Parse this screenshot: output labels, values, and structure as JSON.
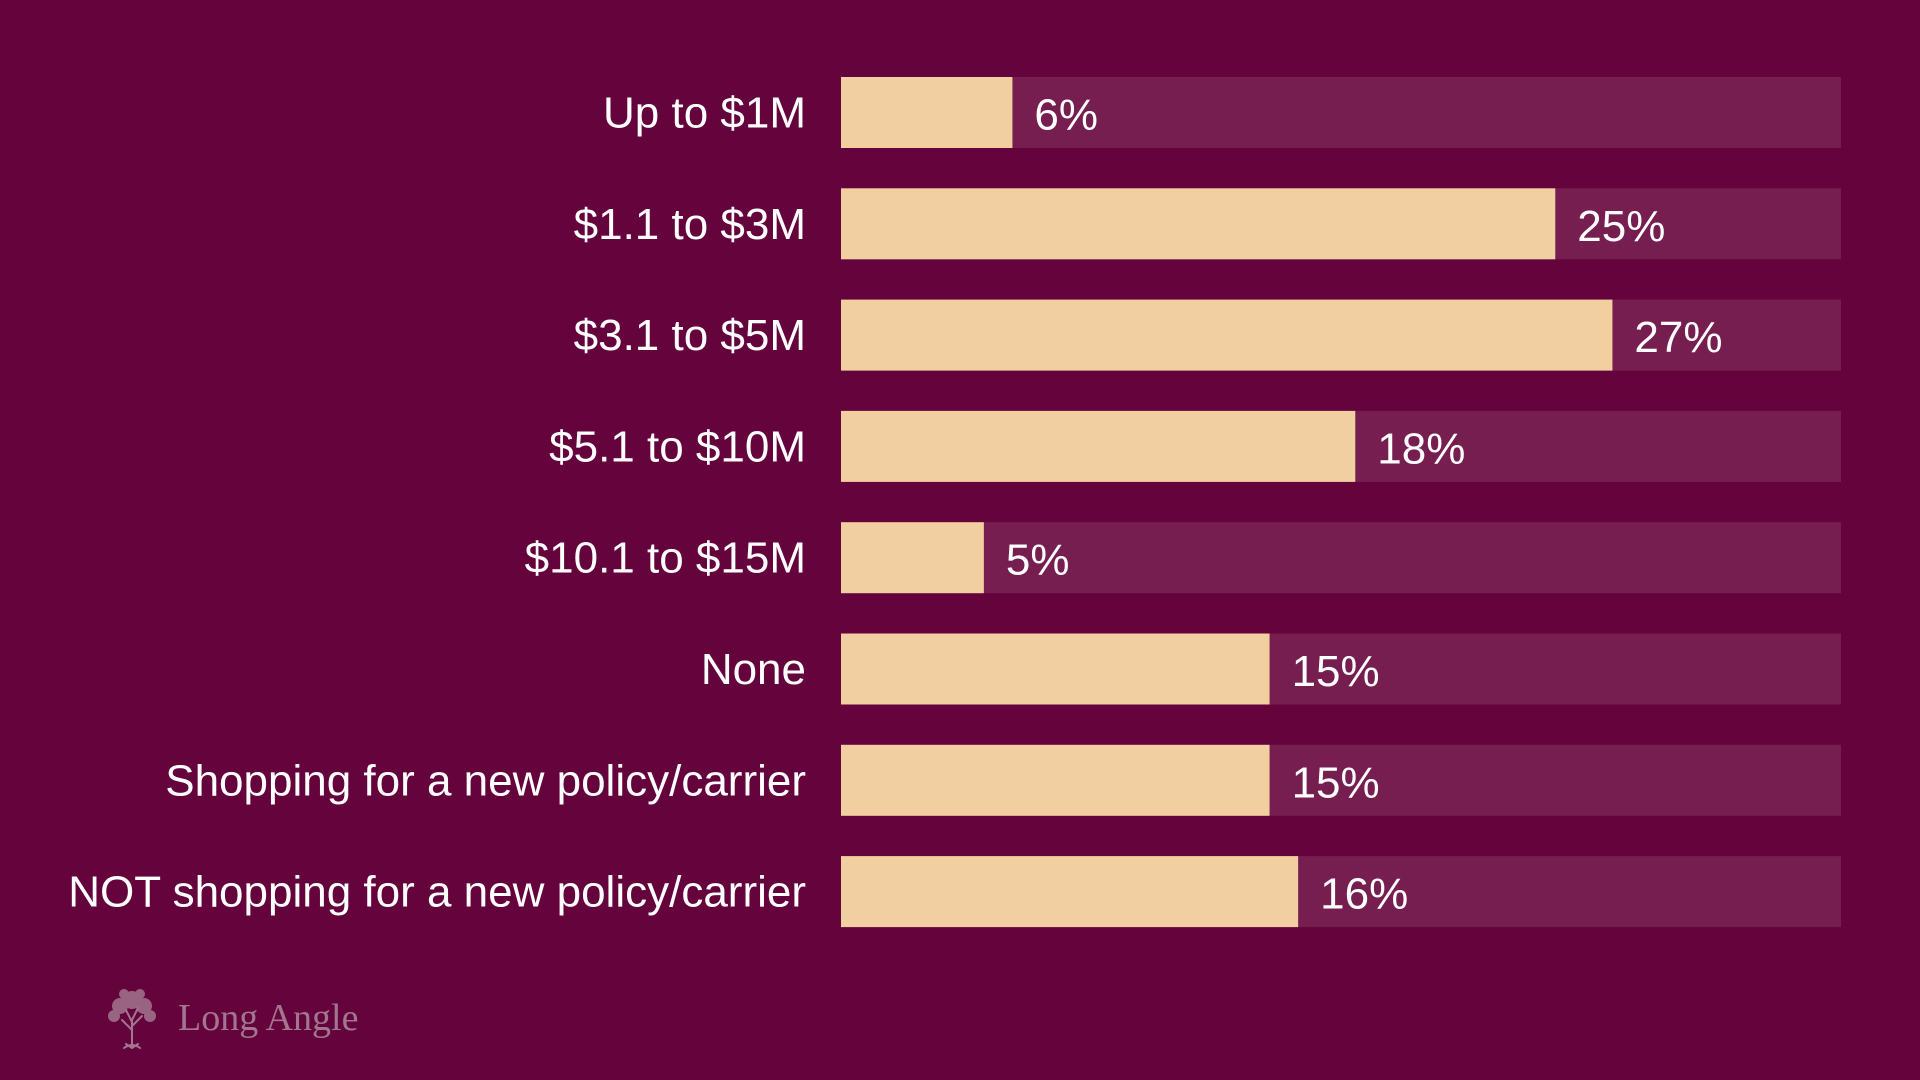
{
  "colors": {
    "background": "#64033c",
    "track": "#771e51",
    "bar": "#f1cfa1",
    "text": "#ffffff",
    "logo": "#a2768f"
  },
  "chart_data": {
    "type": "bar",
    "orientation": "horizontal",
    "title": "",
    "xlabel": "",
    "ylabel": "",
    "xlim": [
      0,
      35
    ],
    "grid": false,
    "legend": "none",
    "categories": [
      "Up to $1M",
      "$1.1 to $3M",
      "$3.1 to $5M",
      "$5.1 to $10M",
      "$10.1 to $15M",
      "None",
      "Shopping for a new policy/carrier",
      "NOT shopping for a new policy/carrier"
    ],
    "values": [
      6,
      25,
      27,
      18,
      5,
      15,
      15,
      16
    ],
    "value_labels": [
      "6%",
      "25%",
      "27%",
      "18%",
      "5%",
      "15%",
      "15%",
      "16%"
    ]
  },
  "branding": {
    "logo_icon": "tree-icon",
    "logo_text": "Long Angle"
  }
}
